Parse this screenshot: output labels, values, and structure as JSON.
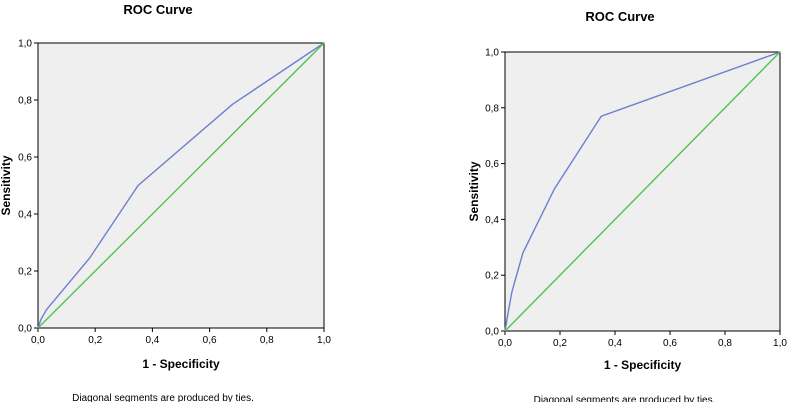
{
  "chart_data": [
    {
      "type": "line",
      "title": "ROC Curve",
      "xlabel": "1 - Specificity",
      "ylabel": "Sensitivity",
      "xlim": [
        0,
        1
      ],
      "ylim": [
        0,
        1
      ],
      "xticks": [
        "0,0",
        "0,2",
        "0,4",
        "0,6",
        "0,8",
        "1,0"
      ],
      "yticks": [
        "0,0",
        "0,2",
        "0,4",
        "0,6",
        "0,8",
        "1,0"
      ],
      "footnote": "Diagonal segments are produced by ties.",
      "grid": false,
      "series": [
        {
          "color": "#6f7fcf",
          "points": [
            [
              0,
              0
            ],
            [
              0.01,
              0.03
            ],
            [
              0.03,
              0.065
            ],
            [
              0.18,
              0.245
            ],
            [
              0.35,
              0.5
            ],
            [
              0.68,
              0.785
            ],
            [
              1,
              1
            ]
          ]
        },
        {
          "color": "#4fc34f",
          "points": [
            [
              0,
              0
            ],
            [
              1,
              1
            ]
          ]
        }
      ]
    },
    {
      "type": "line",
      "title": "ROC Curve",
      "xlabel": "1 - Specificity",
      "ylabel": "Sensitivity",
      "xlim": [
        0,
        1
      ],
      "ylim": [
        0,
        1
      ],
      "xticks": [
        "0,0",
        "0,2",
        "0,4",
        "0,6",
        "0,8",
        "1,0"
      ],
      "yticks": [
        "0,0",
        "0,2",
        "0,4",
        "0,6",
        "0,8",
        "1,0"
      ],
      "footnote": "Diagonal segments are produced by ties.",
      "grid": false,
      "series": [
        {
          "color": "#6f7fcf",
          "points": [
            [
              0,
              0
            ],
            [
              0.01,
              0.06
            ],
            [
              0.025,
              0.14
            ],
            [
              0.065,
              0.28
            ],
            [
              0.18,
              0.51
            ],
            [
              0.35,
              0.77
            ],
            [
              1,
              1
            ]
          ]
        },
        {
          "color": "#4fc34f",
          "points": [
            [
              0,
              0
            ],
            [
              1,
              1
            ]
          ]
        }
      ]
    }
  ]
}
